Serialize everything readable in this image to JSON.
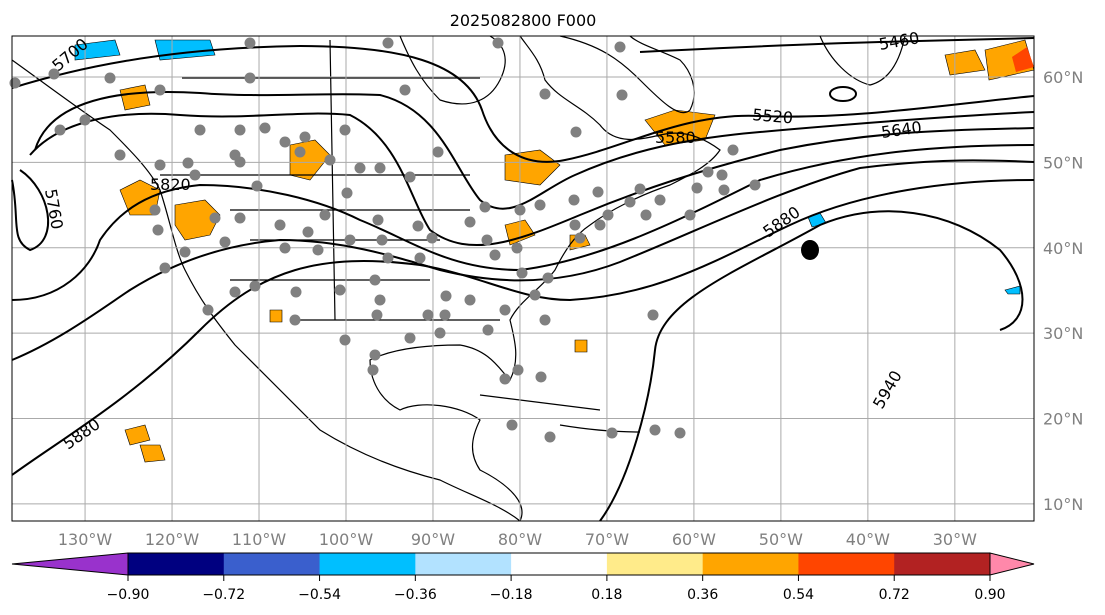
{
  "title": "2025082800 F000",
  "map": {
    "lon_range": [
      -138.4,
      -20.9
    ],
    "lat_range": [
      8,
      64.8
    ],
    "lon_labels": [
      "130°W",
      "120°W",
      "110°W",
      "100°W",
      "90°W",
      "80°W",
      "70°W",
      "60°W",
      "50°W",
      "40°W",
      "30°W"
    ],
    "lon_values": [
      -130,
      -120,
      -110,
      -100,
      -90,
      -80,
      -70,
      -60,
      -50,
      -40,
      -30
    ],
    "lat_labels": [
      "60°N",
      "50°N",
      "40°N",
      "30°N",
      "20°N",
      "10°N"
    ],
    "lat_values": [
      60,
      50,
      40,
      30,
      20,
      10
    ],
    "contour_labels": [
      "5460",
      "5520",
      "5580",
      "5640",
      "5700",
      "5760",
      "5820",
      "5880",
      "5940"
    ],
    "station_color": "#808080"
  },
  "colorbar": {
    "ticks": [
      "−0.90",
      "−0.72",
      "−0.54",
      "−0.36",
      "−0.18",
      "0.18",
      "0.36",
      "0.54",
      "0.72",
      "0.90"
    ],
    "colors": [
      "#9932cc",
      "#000080",
      "#3a5fcd",
      "#00bfff",
      "#b2e2ff",
      "#ffffff",
      "#ffeb8a",
      "#ffa500",
      "#ff4500",
      "#b22222",
      "#ff88aa"
    ]
  }
}
